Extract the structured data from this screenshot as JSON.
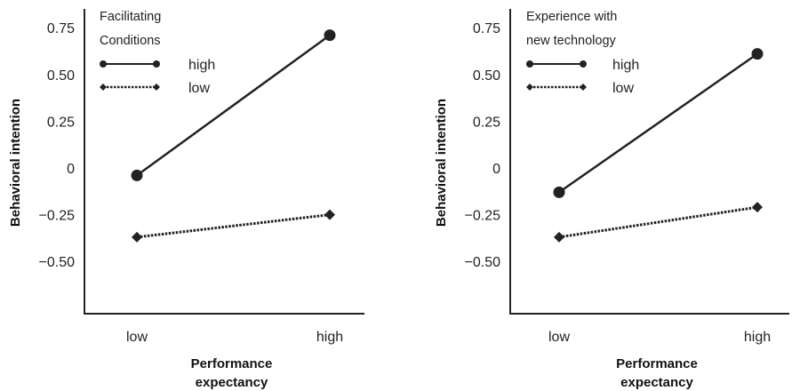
{
  "chart_data": [
    {
      "type": "line",
      "title": "",
      "xlabel": "Performance expectancy",
      "xlabel_lines": [
        "Performance",
        "expectancy"
      ],
      "ylabel": "Behavioral intention",
      "categories": [
        "low",
        "high"
      ],
      "yticks": [
        "0.75",
        "0.50",
        "0.25",
        "0",
        "−0.25",
        "−0.50"
      ],
      "ylim": [
        -0.8,
        0.8
      ],
      "legend_title_lines": [
        "Facilitating",
        "Conditions"
      ],
      "legend_position": "top-left",
      "grid": false,
      "series": [
        {
          "name": "high",
          "values": [
            -0.04,
            0.71
          ],
          "marker": "circle",
          "style": "solid"
        },
        {
          "name": "low",
          "values": [
            -0.37,
            -0.25
          ],
          "marker": "diamond",
          "style": "dotted"
        }
      ]
    },
    {
      "type": "line",
      "title": "",
      "xlabel": "Performance expectancy",
      "xlabel_lines": [
        "Performance",
        "expectancy"
      ],
      "ylabel": "Behavioral intention",
      "categories": [
        "low",
        "high"
      ],
      "yticks": [
        "0.75",
        "0.50",
        "0.25",
        "0",
        "−0.25",
        "−0.50"
      ],
      "ylim": [
        -0.8,
        0.8
      ],
      "legend_title_lines": [
        "Experience with",
        "new technology"
      ],
      "legend_position": "top-left",
      "grid": false,
      "series": [
        {
          "name": "high",
          "values": [
            -0.13,
            0.61
          ],
          "marker": "circle",
          "style": "solid"
        },
        {
          "name": "low",
          "values": [
            -0.37,
            -0.21
          ],
          "marker": "diamond",
          "style": "dotted"
        }
      ]
    }
  ]
}
